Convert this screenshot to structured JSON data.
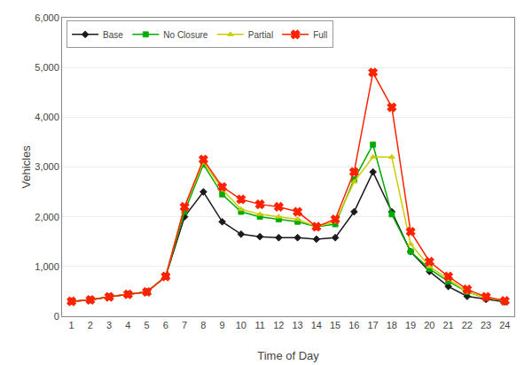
{
  "chart_data": {
    "type": "line",
    "x": [
      1,
      2,
      3,
      4,
      5,
      6,
      7,
      8,
      9,
      10,
      11,
      12,
      13,
      14,
      15,
      16,
      17,
      18,
      19,
      20,
      21,
      22,
      23,
      24
    ],
    "series": [
      {
        "name": "Base",
        "color": "#1a1a1a",
        "marker": "diamond",
        "values": [
          300,
          330,
          390,
          440,
          490,
          800,
          2000,
          2500,
          1900,
          1650,
          1600,
          1580,
          1580,
          1550,
          1580,
          2100,
          2900,
          2100,
          1300,
          900,
          600,
          400,
          340,
          290
        ]
      },
      {
        "name": "No Closure",
        "color": "#00aa00",
        "marker": "square",
        "values": [
          300,
          330,
          390,
          440,
          490,
          800,
          2100,
          3050,
          2450,
          2100,
          2000,
          1950,
          1900,
          1800,
          1850,
          2750,
          3450,
          2050,
          1300,
          950,
          700,
          490,
          370,
          310
        ]
      },
      {
        "name": "Partial",
        "color": "#cccc00",
        "marker": "triangle-up",
        "values": [
          300,
          330,
          390,
          440,
          490,
          800,
          2200,
          3100,
          2550,
          2150,
          2050,
          2000,
          1950,
          1800,
          1900,
          2700,
          3200,
          3200,
          1450,
          1000,
          750,
          490,
          370,
          310
        ]
      },
      {
        "name": "Full",
        "color": "#ff2200",
        "marker": "x",
        "values": [
          300,
          330,
          390,
          440,
          490,
          800,
          2200,
          3150,
          2600,
          2350,
          2250,
          2200,
          2100,
          1800,
          1950,
          2900,
          4900,
          4200,
          1700,
          1100,
          800,
          540,
          390,
          310
        ]
      }
    ],
    "xlabel": "Time of Day",
    "ylabel": "Vehicles",
    "xlim": [
      0.5,
      24.5
    ],
    "xticks": [
      1,
      2,
      3,
      4,
      5,
      6,
      7,
      8,
      9,
      10,
      11,
      12,
      13,
      14,
      15,
      16,
      17,
      18,
      19,
      20,
      21,
      22,
      23,
      24
    ],
    "ylim": [
      0,
      6000
    ],
    "yticks": [
      0,
      {
        "value": 1000,
        "label": "1,000"
      },
      {
        "value": 2000,
        "label": "2,000"
      },
      {
        "value": 3000,
        "label": "3,000"
      },
      {
        "value": 4000,
        "label": "4,000"
      },
      {
        "value": 5000,
        "label": "5,000"
      },
      {
        "value": 6000,
        "label": "6,000"
      }
    ],
    "grid": true,
    "legend": "top left"
  }
}
